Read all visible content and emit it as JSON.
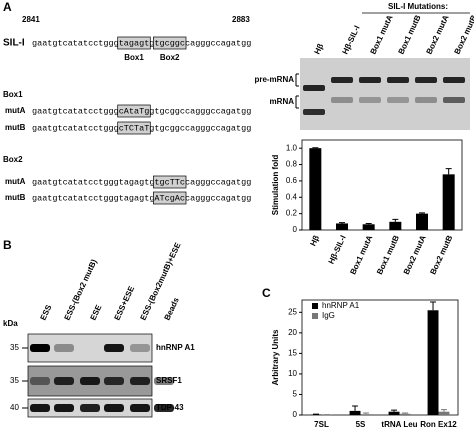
{
  "panel_a": {
    "label": "A",
    "pos_start": 2841,
    "pos_end": 2883,
    "wildtype": {
      "name": "SIL-I",
      "segments": [
        {
          "text": "gaatgtcatatcctggg"
        },
        {
          "text": "tagagt",
          "boxed": true
        },
        {
          "text": "g"
        },
        {
          "text": "tgcggc",
          "boxed": true
        },
        {
          "text": "cagggccagatgg"
        }
      ]
    },
    "box_labels": [
      "Box1",
      "Box2"
    ],
    "mutants": [
      {
        "title": "Box1",
        "rows": [
          {
            "name": "mutA",
            "segments": [
              {
                "text": "gaatgtcatatcctggg"
              },
              {
                "text": "cAtaTg",
                "boxed": true
              },
              {
                "text": "gtgcggccagggccagatgg"
              }
            ]
          },
          {
            "name": "mutB",
            "segments": [
              {
                "text": "gaatgtcatatcctggg"
              },
              {
                "text": "cTCTaT",
                "boxed": true
              },
              {
                "text": "gtgcggccagggccagatgg"
              }
            ]
          }
        ]
      },
      {
        "title": "Box2",
        "rows": [
          {
            "name": "mutA",
            "segments": [
              {
                "text": "gaatgtcatatcctgggtagagtg"
              },
              {
                "text": "tgcTTc",
                "boxed": true
              },
              {
                "text": "cagggccagatgg"
              }
            ]
          },
          {
            "name": "mutB",
            "segments": [
              {
                "text": "gaatgtcatatcctgggtagagtg"
              },
              {
                "text": "ATcgAc",
                "boxed": true
              },
              {
                "text": "cagggccagatgg"
              }
            ]
          }
        ]
      }
    ],
    "gel": {
      "header": "SIL-I Mutations:",
      "lanes": [
        "Hβ",
        "Hβ-SIL-I",
        "Box1 mutA",
        "Box1 mutB",
        "Box2 mutA",
        "Box2 mutB"
      ],
      "band_labels": [
        "pre-mRNA",
        "mRNA"
      ]
    }
  },
  "chart_data": [
    {
      "type": "bar",
      "y_label": "Stimulation fold",
      "categories": [
        "Hβ",
        "Hβ-SIL-I",
        "Box1 mutA",
        "Box1 mutB",
        "Box2 mutA",
        "Box2 mutB"
      ],
      "series": [
        {
          "color": "#000000",
          "values": [
            1.0,
            0.08,
            0.07,
            0.1,
            0.2,
            0.68
          ],
          "errors": [
            0.005,
            0.01,
            0.01,
            0.03,
            0.01,
            0.07
          ]
        }
      ],
      "ylim": [
        0,
        1.1
      ],
      "yticks": [
        0,
        0.2,
        0.4,
        0.6,
        0.8,
        {
          "value": 1,
          "label": "1.0"
        }
      ]
    },
    {
      "type": "bar",
      "y_label": "Arbitrary Units",
      "categories": [
        "7SL",
        "5S",
        "tRNA Leu",
        "Ron Ex12"
      ],
      "series": [
        {
          "name": "hnRNP A1",
          "color": "#000000",
          "values": [
            0.1,
            1.0,
            0.8,
            25.5
          ],
          "errors": [
            0.1,
            1.2,
            0.4,
            2.0
          ]
        },
        {
          "name": "IgG",
          "color": "#777777",
          "values": [
            0.05,
            0.2,
            0.3,
            0.8
          ],
          "errors": [
            0.05,
            0.3,
            0.2,
            0.5
          ]
        }
      ],
      "ylim": [
        0,
        28
      ],
      "yticks": [
        0,
        5,
        10,
        15,
        20,
        25
      ],
      "legend": "upper left"
    }
  ],
  "panel_b": {
    "label": "B",
    "unit": "kDa",
    "lanes": [
      "ESS",
      "ESS-(Box2 mutB)",
      "ESE",
      "ESS+ESE",
      "ESS-(Box2mutB)+ESE",
      "Beads"
    ],
    "blots": [
      {
        "marker": 35,
        "name": "hnRNP A1"
      },
      {
        "marker": 35,
        "name": "SRSF1"
      },
      {
        "marker": 40,
        "name": "TDP-43"
      }
    ]
  },
  "panel_c": {
    "label": "C"
  }
}
